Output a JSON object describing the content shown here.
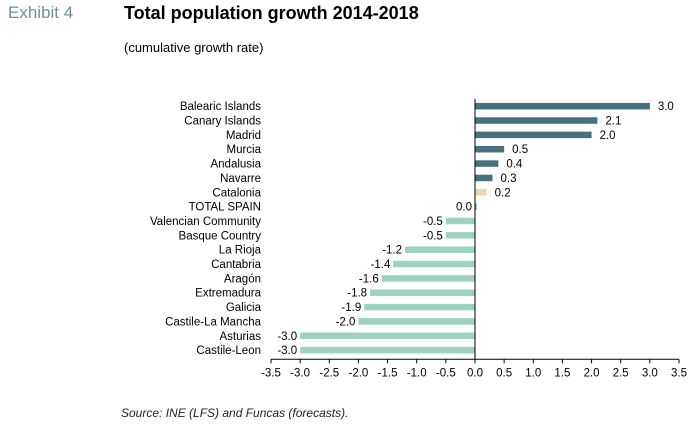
{
  "header": {
    "exhibit": "Exhibit 4",
    "title": "Total population growth 2014-2018",
    "subtitle": "(cumulative growth rate)"
  },
  "footer": {
    "source": "Source: INE (LFS) and Funcas (forecasts)."
  },
  "colors": {
    "positive": "#45727e",
    "negative": "#9dd3bd",
    "highlight": "#ecd7ab",
    "total": "#6e9aa3"
  },
  "chart_data": {
    "type": "bar",
    "orientation": "horizontal",
    "title": "Total population growth 2014-2018",
    "subtitle": "(cumulative growth rate)",
    "categories": [
      "Balearic Islands",
      "Canary Islands",
      "Madrid",
      "Murcia",
      "Andalusia",
      "Navarre",
      "Catalonia",
      "TOTAL SPAIN",
      "Valencian Community",
      "Basque Country",
      "La Rioja",
      "Cantabria",
      "Aragón",
      "Extremadura",
      "Galicia",
      "Castile-La Mancha",
      "Asturias",
      "Castile-Leon"
    ],
    "values": [
      3.0,
      2.1,
      2.0,
      0.5,
      0.4,
      0.3,
      0.2,
      0.0,
      -0.5,
      -0.5,
      -1.2,
      -1.4,
      -1.6,
      -1.8,
      -1.9,
      -2.0,
      -3.0,
      -3.0
    ],
    "value_labels": [
      "3.0",
      "2.1",
      "2.0",
      "0.5",
      "0.4",
      "0.3",
      "0.2",
      "0.0",
      "-0.5",
      "-0.5",
      "-1.2",
      "-1.4",
      "-1.6",
      "-1.8",
      "-1.9",
      "-2.0",
      "-3.0",
      "-3.0"
    ],
    "highlight_category": "Catalonia",
    "xlim": [
      -3.5,
      3.5
    ],
    "xticks": [
      "-3.5",
      "-3.0",
      "-2.5",
      "-2.0",
      "-1.5",
      "-1.0",
      "-0.5",
      "0.0",
      "0.5",
      "1.0",
      "1.5",
      "2.0",
      "2.5",
      "3.0",
      "3.5"
    ],
    "grid": false,
    "legend": "none"
  }
}
